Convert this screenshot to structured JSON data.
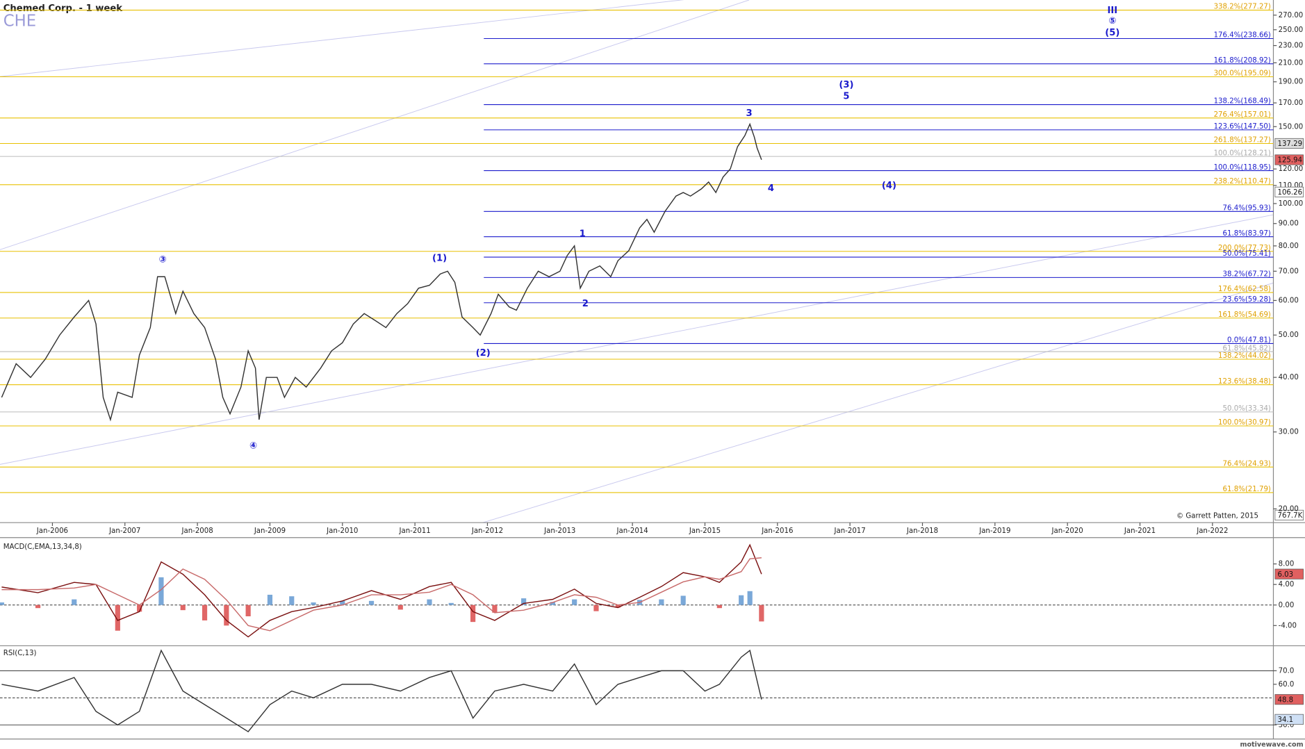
{
  "footer": "motivewave.com",
  "chart_data": [
    {
      "type": "line",
      "title": "Chemed Corp. - 1 week",
      "subtitle": "CHE",
      "log_scale": true,
      "x": [
        2005.3,
        2005.5,
        2005.7,
        2005.9,
        2006.1,
        2006.3,
        2006.5,
        2006.6,
        2006.7,
        2006.8,
        2006.9,
        2007.1,
        2007.2,
        2007.35,
        2007.45,
        2007.55,
        2007.7,
        2007.8,
        2007.95,
        2008.1,
        2008.25,
        2008.35,
        2008.45,
        2008.6,
        2008.7,
        2008.8,
        2008.85,
        2008.95,
        2009.1,
        2009.2,
        2009.35,
        2009.5,
        2009.7,
        2009.85,
        2010.0,
        2010.15,
        2010.3,
        2010.45,
        2010.6,
        2010.75,
        2010.9,
        2011.05,
        2011.2,
        2011.35,
        2011.45,
        2011.55,
        2011.65,
        2011.8,
        2011.9,
        2012.05,
        2012.15,
        2012.3,
        2012.4,
        2012.55,
        2012.7,
        2012.85,
        2013.0,
        2013.1,
        2013.2,
        2013.28,
        2013.4,
        2013.55,
        2013.7,
        2013.8,
        2013.95,
        2014.1,
        2014.2,
        2014.3,
        2014.45,
        2014.6,
        2014.7,
        2014.8,
        2014.95,
        2015.05,
        2015.15,
        2015.25,
        2015.35,
        2015.45,
        2015.55,
        2015.62,
        2015.68,
        2015.72,
        2015.78
      ],
      "series": [
        {
          "color": "#333333",
          "values": [
            36,
            43,
            40,
            44,
            50,
            55,
            60,
            53,
            36,
            32,
            37,
            36,
            45,
            52,
            68,
            68,
            56,
            63,
            56,
            52,
            44,
            36,
            33,
            38,
            46,
            42,
            32,
            40,
            40,
            36,
            40,
            38,
            42,
            46,
            48,
            53,
            56,
            54,
            52,
            56,
            59,
            64,
            65,
            69,
            70,
            66,
            55,
            52,
            50,
            56,
            62,
            58,
            57,
            64,
            70,
            68,
            70,
            76,
            80,
            64,
            70,
            72,
            68,
            74,
            78,
            88,
            92,
            86,
            96,
            104,
            106,
            104,
            108,
            112,
            106,
            115,
            120,
            135,
            143,
            152,
            142,
            134,
            126
          ]
        }
      ],
      "xlim": [
        2005.277,
        2022.84
      ],
      "xticks": [
        {
          "value": 2006,
          "label": "Jan-2006"
        },
        {
          "value": 2007,
          "label": "Jan-2007"
        },
        {
          "value": 2008,
          "label": "Jan-2008"
        },
        {
          "value": 2009,
          "label": "Jan-2009"
        },
        {
          "value": 2010,
          "label": "Jan-2010"
        },
        {
          "value": 2011,
          "label": "Jan-2011"
        },
        {
          "value": 2012,
          "label": "Jan-2012"
        },
        {
          "value": 2013,
          "label": "Jan-2013"
        },
        {
          "value": 2014,
          "label": "Jan-2014"
        },
        {
          "value": 2015,
          "label": "Jan-2015"
        },
        {
          "value": 2016,
          "label": "Jan-2016"
        },
        {
          "value": 2017,
          "label": "Jan-2017"
        },
        {
          "value": 2018,
          "label": "Jan-2018"
        },
        {
          "value": 2019,
          "label": "Jan-2019"
        },
        {
          "value": 2020,
          "label": "Jan-2020"
        },
        {
          "value": 2021,
          "label": "Jan-2021"
        },
        {
          "value": 2022,
          "label": "Jan-2022"
        }
      ],
      "ylim": [
        18.6,
        292.4
      ],
      "yticks": [
        {
          "value": 20,
          "label": "20.00"
        },
        {
          "value": 30,
          "label": "30.00"
        },
        {
          "value": 40,
          "label": "40.00"
        },
        {
          "value": 50,
          "label": "50.00"
        },
        {
          "value": 60,
          "label": "60.00"
        },
        {
          "value": 70,
          "label": "70.00"
        },
        {
          "value": 80,
          "label": "80.00"
        },
        {
          "value": 90,
          "label": "90.00"
        },
        {
          "value": 100,
          "label": "100.00"
        },
        {
          "value": 110,
          "label": "110.00"
        },
        {
          "value": 120,
          "label": "120.00"
        },
        {
          "value": 150,
          "label": "150.00"
        },
        {
          "value": 170,
          "label": "170.00"
        },
        {
          "value": 190,
          "label": "190.00"
        },
        {
          "value": 210,
          "label": "210.00"
        },
        {
          "value": 230,
          "label": "230.00"
        },
        {
          "value": 250,
          "label": "250.00"
        },
        {
          "value": 270,
          "label": "270.00"
        }
      ],
      "levels": [
        {
          "color": "#e8c000",
          "text_color": "#e0a000",
          "items": [
            {
              "label": "338.2%(277.27)",
              "value": 277.27
            },
            {
              "label": "300.0%(195.09)",
              "value": 195.09
            },
            {
              "label": "276.4%(157.01)",
              "value": 157.01
            },
            {
              "label": "261.8%(137.27)",
              "value": 137.27
            },
            {
              "label": "238.2%(110.47)",
              "value": 110.47
            },
            {
              "label": "200.0%(77.73)",
              "value": 77.73
            },
            {
              "label": "176.4%(62.58)",
              "value": 62.58
            },
            {
              "label": "161.8%(54.69)",
              "value": 54.69
            },
            {
              "label": "138.2%(44.02)",
              "value": 44.02
            },
            {
              "label": "123.6%(38.48)",
              "value": 38.48
            },
            {
              "label": "100.0%(30.97)",
              "value": 30.97
            },
            {
              "label": "76.4%(24.93)",
              "value": 24.93
            },
            {
              "label": "61.8%(21.79)",
              "value": 21.79
            }
          ]
        },
        {
          "color": "#bbbbbb",
          "text_color": "#aaaaaa",
          "items": [
            {
              "label": "100.0%(128.21)",
              "value": 128.21
            },
            {
              "label": "61.8%(45.82)",
              "value": 45.82
            },
            {
              "label": "50.0%(33.34)",
              "value": 33.34
            }
          ]
        },
        {
          "color": "#1a1acc",
          "text_color": "#1a1acc",
          "x_start": 2011.95,
          "items": [
            {
              "label": "176.4%(238.66)",
              "value": 238.66
            },
            {
              "label": "161.8%(208.92)",
              "value": 208.92
            },
            {
              "label": "138.2%(168.49)",
              "value": 168.49
            },
            {
              "label": "123.6%(147.50)",
              "value": 147.5
            },
            {
              "label": "100.0%(118.95)",
              "value": 118.95
            },
            {
              "label": "76.4%(95.93)",
              "value": 95.93
            },
            {
              "label": "61.8%(83.97)",
              "value": 83.97
            },
            {
              "label": "50.0%(75.41)",
              "value": 75.41
            },
            {
              "label": "38.2%(67.72)",
              "value": 67.72
            },
            {
              "label": "23.6%(59.28)",
              "value": 59.28
            },
            {
              "label": "0.0%(47.81)",
              "value": 47.81
            }
          ]
        }
      ],
      "annotations": [
        {
          "text": "③",
          "x": 2007.52,
          "y": 74.4
        },
        {
          "text": "(1)",
          "x": 2011.34,
          "y": 75
        },
        {
          "text": "(2)",
          "x": 2011.94,
          "y": 45.5
        },
        {
          "text": "④",
          "x": 2008.77,
          "y": 27.9
        },
        {
          "text": "1",
          "x": 2013.31,
          "y": 85.2
        },
        {
          "text": "2",
          "x": 2013.35,
          "y": 59
        },
        {
          "text": "3",
          "x": 2015.61,
          "y": 161
        },
        {
          "text": "4",
          "x": 2015.91,
          "y": 108.4
        },
        {
          "text": "(3)",
          "x": 2016.95,
          "y": 187
        },
        {
          "text": "5",
          "x": 2016.95,
          "y": 176
        },
        {
          "text": "(4)",
          "x": 2017.54,
          "y": 110
        },
        {
          "text": "III",
          "x": 2020.62,
          "y": 277
        },
        {
          "text": "⑤",
          "x": 2020.62,
          "y": 262
        },
        {
          "text": "(5)",
          "x": 2020.62,
          "y": 246
        }
      ],
      "price_markers": [
        {
          "value": 137.29,
          "color": "#dddddd"
        },
        {
          "value": 125.94,
          "color": "#e06060"
        },
        {
          "value": 106.26,
          "color": "#ffffff"
        }
      ],
      "volume_label": "767.7K",
      "credit": "© Garrett Patten, 2015"
    },
    {
      "type": "macd",
      "title": "MACD(C,EMA,13,34,8)",
      "x": [
        2005.3,
        2005.8,
        2006.3,
        2006.6,
        2006.9,
        2007.2,
        2007.5,
        2007.8,
        2008.1,
        2008.4,
        2008.7,
        2009.0,
        2009.3,
        2009.6,
        2010.0,
        2010.4,
        2010.8,
        2011.2,
        2011.5,
        2011.8,
        2012.1,
        2012.5,
        2012.9,
        2013.2,
        2013.5,
        2013.8,
        2014.1,
        2014.4,
        2014.7,
        2015.0,
        2015.2,
        2015.5,
        2015.62,
        2015.78
      ],
      "series": [
        {
          "color": "#7a1010",
          "values": [
            3.5,
            2.4,
            4.4,
            4,
            -3,
            -1.3,
            8.4,
            6,
            2,
            -3,
            -6.2,
            -3,
            -1.3,
            -0.5,
            0.8,
            2.8,
            1.1,
            3.6,
            4.4,
            -1.3,
            -3,
            0.3,
            1.1,
            3.1,
            0.3,
            -0.5,
            1.5,
            3.6,
            6.3,
            5.5,
            4.4,
            8.4,
            11.7,
            6.03
          ]
        },
        {
          "color": "#c86a6a",
          "values": [
            3,
            3,
            3.3,
            4,
            2,
            0,
            3,
            7,
            5,
            1,
            -4,
            -5,
            -3,
            -1,
            0,
            2,
            2,
            2.5,
            4,
            2,
            -1.5,
            -1,
            0.5,
            2,
            1.5,
            0,
            0.5,
            2.5,
            4.5,
            5.5,
            5,
            6.5,
            9,
            9.2
          ]
        }
      ],
      "histogram": {
        "positive_color": "#7aa8d8",
        "negative_color": "#e06666",
        "values": [
          0.5,
          -0.6,
          1.1,
          0,
          -5,
          -1.3,
          5.4,
          -1,
          -3,
          -4,
          -2.2,
          2,
          1.7,
          0.5,
          0.8,
          0.8,
          -0.9,
          1.1,
          0.4,
          -3.3,
          -1.5,
          1.3,
          0.6,
          1.1,
          -1.2,
          -0.5,
          1,
          1.1,
          1.8,
          0,
          -0.6,
          1.9,
          2.7,
          -3.2
        ]
      },
      "xlim": [
        2005.277,
        2022.84
      ],
      "ylim": [
        -7.94,
        12.8
      ],
      "yticks": [
        {
          "value": 8,
          "label": "8.00"
        },
        {
          "value": 4,
          "label": "4.00"
        },
        {
          "value": 0,
          "label": "0.00"
        },
        {
          "value": -4,
          "label": "-4.00"
        }
      ],
      "bands": [
        {
          "value": 0,
          "style": "dashed"
        }
      ],
      "marker_color": "#e06060"
    },
    {
      "type": "line",
      "title": "RSI(C,13)",
      "x": [
        2005.3,
        2005.8,
        2006.3,
        2006.6,
        2006.9,
        2007.2,
        2007.5,
        2007.8,
        2008.1,
        2008.4,
        2008.7,
        2009.0,
        2009.3,
        2009.6,
        2010.0,
        2010.4,
        2010.8,
        2011.2,
        2011.5,
        2011.8,
        2012.1,
        2012.5,
        2012.9,
        2013.2,
        2013.5,
        2013.8,
        2014.1,
        2014.4,
        2014.7,
        2015.0,
        2015.2,
        2015.5,
        2015.62,
        2015.78
      ],
      "series": [
        {
          "color": "#333333",
          "values": [
            60,
            55,
            65,
            40,
            30,
            40,
            85,
            55,
            45,
            35,
            25,
            45,
            55,
            50,
            60,
            60,
            55,
            65,
            70,
            35,
            55,
            60,
            55,
            75,
            45,
            60,
            65,
            70,
            70,
            55,
            60,
            80,
            85,
            48.8
          ]
        }
      ],
      "xlim": [
        2005.277,
        2022.84
      ],
      "ylim": [
        19.6,
        87.2
      ],
      "yticks": [
        {
          "value": 70,
          "label": "70.0"
        },
        {
          "value": 60,
          "label": "60.0"
        },
        {
          "value": 30,
          "label": "30.0"
        }
      ],
      "bands": [
        {
          "value": 70,
          "style": "solid"
        },
        {
          "value": 50,
          "style": "dashed"
        },
        {
          "value": 30,
          "style": "solid"
        }
      ],
      "marker_color": "#e06060",
      "markers": [
        {
          "value": 34.1,
          "color": "#cfe0f5"
        }
      ]
    }
  ]
}
